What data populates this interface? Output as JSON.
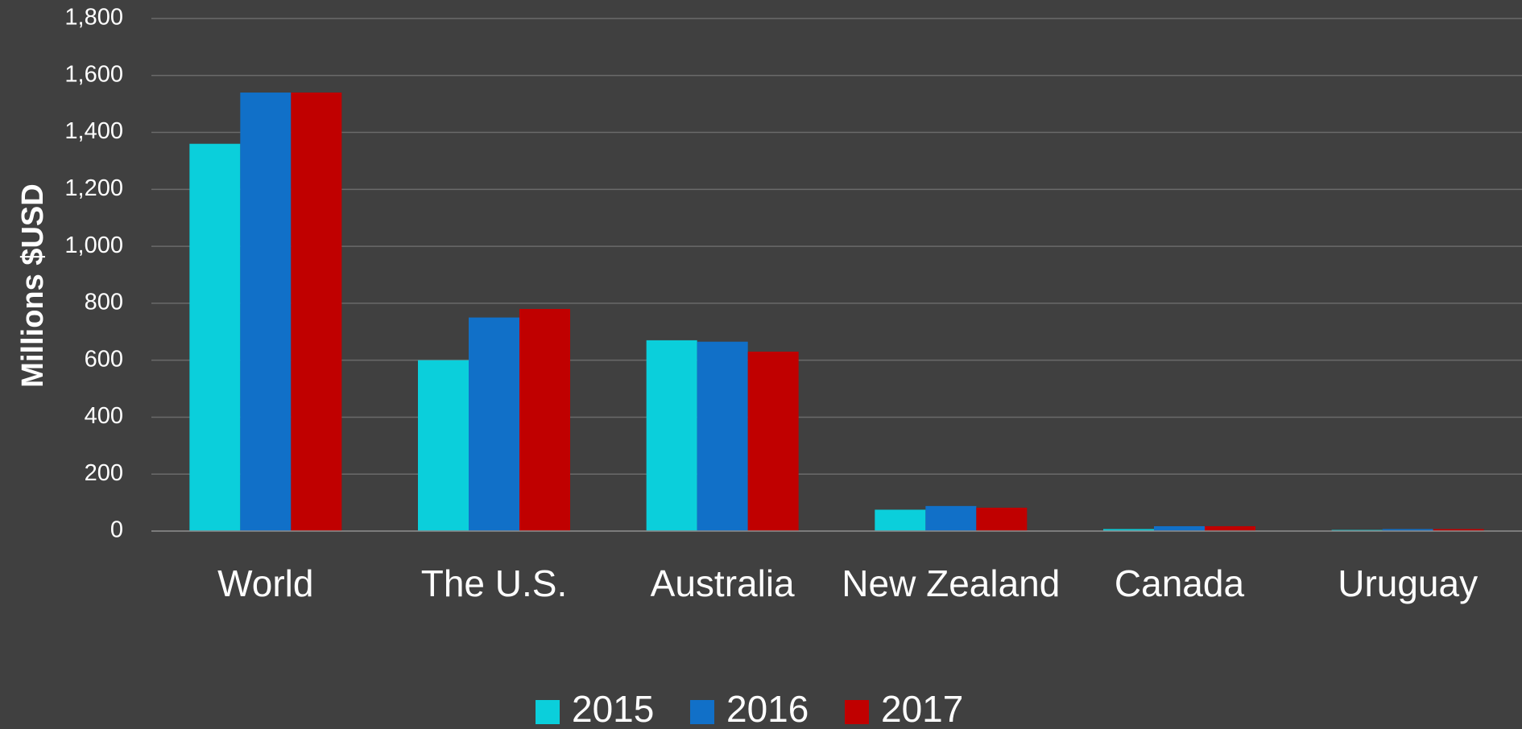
{
  "chart_data": {
    "type": "bar",
    "y_label": "Millions $USD",
    "categories": [
      "World",
      "The U.S.",
      "Australia",
      "New Zealand",
      "Canada",
      "Uruguay"
    ],
    "series": [
      {
        "name": "2015",
        "color": "#0bcfdb",
        "values": [
          1360,
          600,
          670,
          75,
          7,
          4
        ]
      },
      {
        "name": "2016",
        "color": "#1170c8",
        "values": [
          1540,
          750,
          665,
          88,
          17,
          7
        ]
      },
      {
        "name": "2017",
        "color": "#c00000",
        "values": [
          1540,
          780,
          630,
          82,
          17,
          7
        ]
      }
    ],
    "ylim": [
      0,
      1800
    ],
    "yticks": [
      0,
      200,
      400,
      600,
      800,
      {
        "value": 1000,
        "label": "1,000"
      },
      {
        "value": 1200,
        "label": "1,200"
      },
      {
        "value": 1400,
        "label": "1,400"
      },
      {
        "value": 1600,
        "label": "1,600"
      },
      {
        "value": 1800,
        "label": "1,800"
      }
    ],
    "grid": true,
    "legend": "bottom"
  }
}
